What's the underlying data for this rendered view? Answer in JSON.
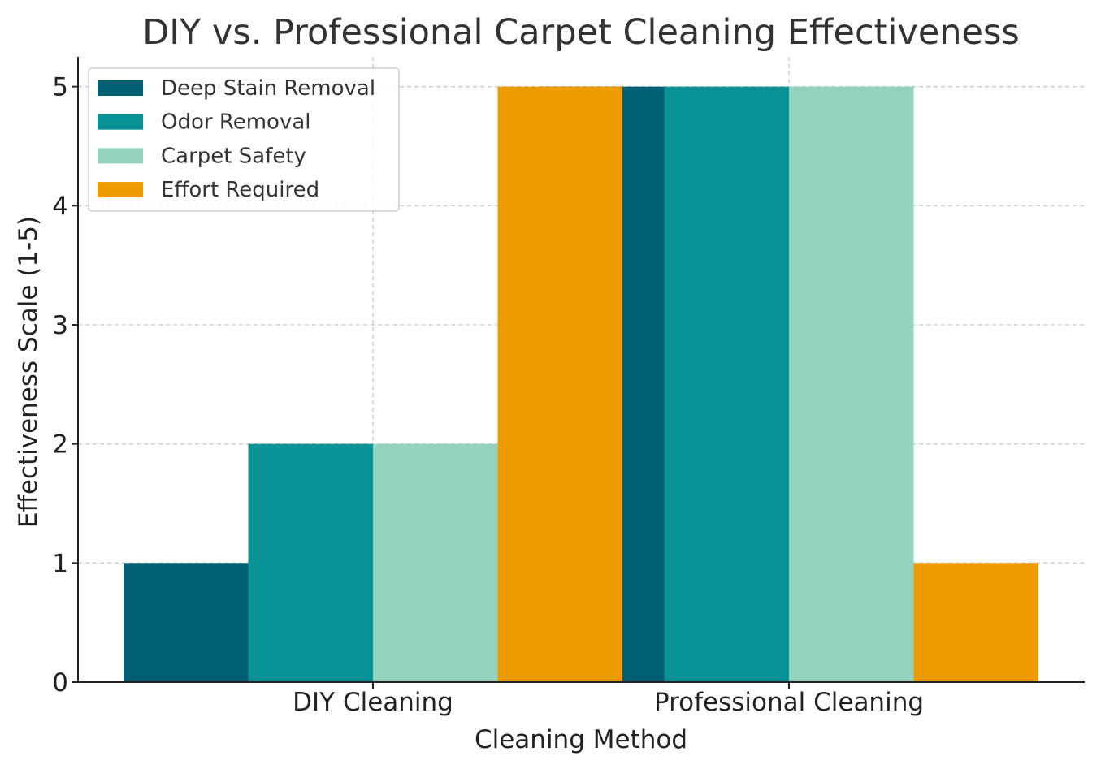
{
  "chart_data": {
    "type": "bar",
    "title": "DIY vs. Professional Carpet Cleaning Effectiveness",
    "xlabel": "Cleaning Method",
    "ylabel": "Effectiveness Scale (1-5)",
    "categories": [
      "DIY Cleaning",
      "Professional Cleaning"
    ],
    "series": [
      {
        "name": "Deep Stain Removal",
        "values": [
          1,
          5
        ],
        "color": "#005f73"
      },
      {
        "name": "Odor Removal",
        "values": [
          2,
          5
        ],
        "color": "#0a9396"
      },
      {
        "name": "Carpet Safety",
        "values": [
          2,
          5
        ],
        "color": "#94d2bd"
      },
      {
        "name": "Effort Required",
        "values": [
          5,
          1
        ],
        "color": "#ee9b00"
      }
    ],
    "ylim": [
      0,
      5.25
    ],
    "yticks": [
      0,
      1,
      2,
      3,
      4,
      5
    ],
    "grid": true,
    "legend_position": "top-left"
  }
}
